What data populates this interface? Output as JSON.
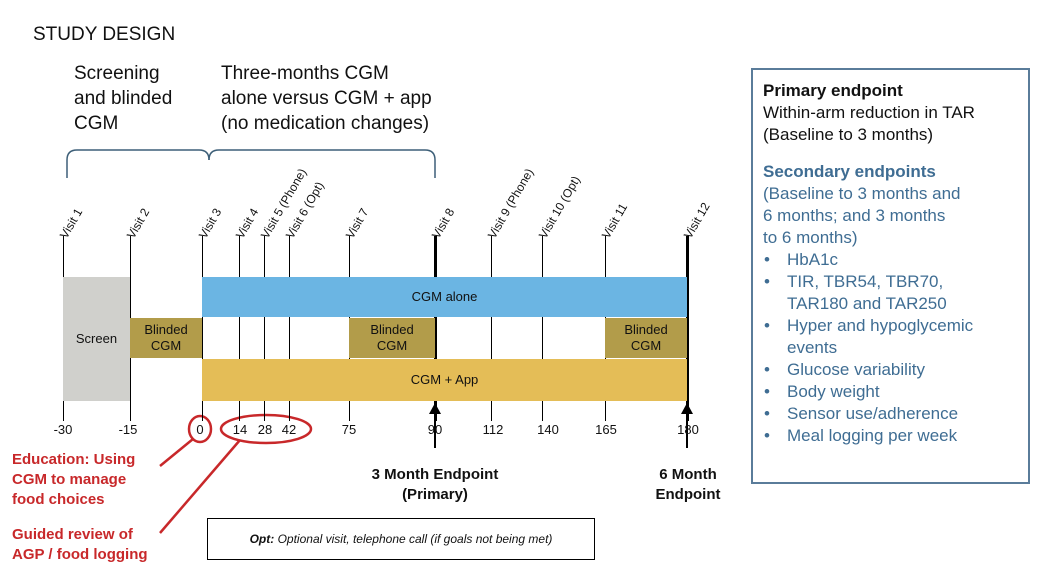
{
  "title": "STUDY DESIGN",
  "phase1_lines": [
    "Screening",
    "and blinded",
    "CGM"
  ],
  "phase2_lines": [
    "Three-months CGM",
    "alone versus CGM + app",
    "(no medication changes)"
  ],
  "visits": [
    {
      "label": "Visit 1"
    },
    {
      "label": "Visit 2"
    },
    {
      "label": "Visit 3"
    },
    {
      "label": "Visit 4"
    },
    {
      "label": "Visit 5 (Phone)"
    },
    {
      "label": "Visit 6 (Opt)"
    },
    {
      "label": "Visit 7"
    },
    {
      "label": "Visit 8"
    },
    {
      "label": "Visit 9 (Phone)"
    },
    {
      "label": "Visit 10 (Opt)"
    },
    {
      "label": "Visit 11"
    },
    {
      "label": "Visit 12"
    }
  ],
  "bars": {
    "screen": "Screen",
    "blinded_lines": [
      "Blinded",
      "CGM"
    ],
    "cgm_alone": "CGM alone",
    "cgm_app": "CGM + App"
  },
  "ticks": [
    "-30",
    "-15",
    "0",
    "14",
    "28",
    "42",
    "75",
    "90",
    "112",
    "140",
    "165",
    "180"
  ],
  "annotations": {
    "education_lines": [
      "Education: Using",
      "CGM to manage",
      "food choices"
    ],
    "guided_lines": [
      "Guided review of",
      "AGP / food logging"
    ],
    "endpoint3_lines": [
      "3 Month Endpoint",
      "(Primary)"
    ],
    "endpoint6_lines": [
      "6 Month",
      "Endpoint"
    ]
  },
  "legend": {
    "bold": "Opt:",
    "text": " Optional visit, telephone call (if goals not being met)"
  },
  "panel": {
    "primary_heading": "Primary endpoint",
    "primary_lines": [
      "Within-arm reduction in TAR",
      "(Baseline to 3 months)"
    ],
    "secondary_heading": "Secondary endpoints",
    "secondary_lines": [
      "(Baseline to 3 months and",
      "6 months; and 3 months",
      "to 6 months)"
    ],
    "bullets": [
      {
        "lines": [
          "HbA1c"
        ]
      },
      {
        "lines": [
          "TIR, TBR54, TBR70,",
          "TAR180 and TAR250"
        ]
      },
      {
        "lines": [
          "Hyper and hypoglycemic",
          "events"
        ]
      },
      {
        "lines": [
          "Glucose variability"
        ]
      },
      {
        "lines": [
          "Body weight"
        ]
      },
      {
        "lines": [
          "Sensor use/adherence"
        ]
      },
      {
        "lines": [
          "Meal logging per week"
        ]
      }
    ]
  },
  "colors": {
    "screen": "#d0d0cc",
    "blinded": "#b29c4a",
    "cgm_alone": "#6bb5e3",
    "cgm_app": "#e4bd57",
    "red": "#c8282a",
    "panel_border": "#5a7c9a",
    "panel_text": "#3f6d93",
    "bracket": "#3d5f78"
  }
}
